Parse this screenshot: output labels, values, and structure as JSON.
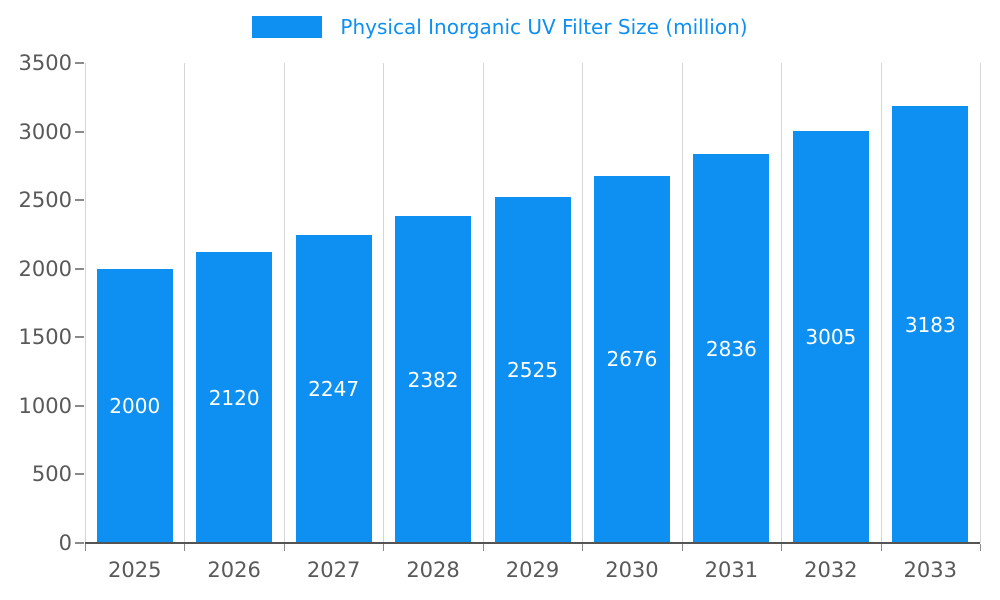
{
  "chart_data": {
    "type": "bar",
    "title": "Physical Inorganic UV Filter Size (million)",
    "categories": [
      "2025",
      "2026",
      "2027",
      "2028",
      "2029",
      "2030",
      "2031",
      "2032",
      "2033"
    ],
    "values": [
      2000,
      2120,
      2247,
      2382,
      2525,
      2676,
      2836,
      3005,
      3183
    ],
    "xlabel": "",
    "ylabel": "",
    "ylim": [
      0,
      3500
    ],
    "ytick_step": 500,
    "ytick_labels": [
      "0",
      "500",
      "1000",
      "1500",
      "2000",
      "2500",
      "3000",
      "3500"
    ],
    "grid": "vertical",
    "legend_position": "top-center",
    "data_labels": "inside-center"
  },
  "legend": {
    "label": "Physical Inorganic UV Filter Size (million)"
  },
  "colors": {
    "bar": "#0e90f2",
    "legend_text": "#0e90f2",
    "axis_label": "#595959",
    "gridline": "#d6d6d6",
    "baseline": "#545454",
    "data_label": "#ffffff",
    "background": "#ffffff"
  }
}
